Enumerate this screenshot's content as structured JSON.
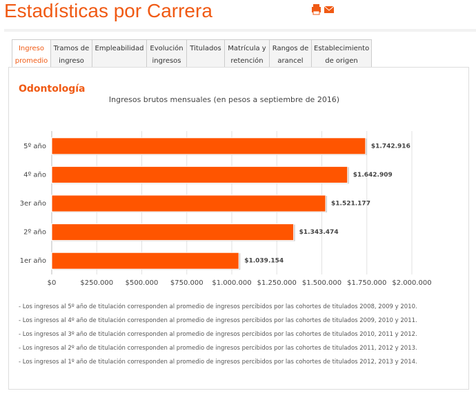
{
  "header": {
    "title": "Estadísticas por Carrera"
  },
  "tabs": [
    "Ingreso promedio",
    "Tramos de ingreso",
    "Empleabilidad",
    "Evolución ingresos",
    "Titulados",
    "Matrícula y retención",
    "Rangos de arancel",
    "Establecimiento de origen"
  ],
  "section_title": "Odontología",
  "chart_data": {
    "type": "hbar",
    "title": "Ingresos brutos mensuales (en pesos a septiembre de 2016)",
    "categories": [
      "5º año",
      "4º año",
      "3er año",
      "2º año",
      "1er año"
    ],
    "values": [
      1742916,
      1642909,
      1521177,
      1343474,
      1039154
    ],
    "value_labels": [
      "$1.742.916",
      "$1.642.909",
      "$1.521.177",
      "$1.343.474",
      "$1.039.154"
    ],
    "color": "#ff5500",
    "xlim": [
      0,
      2000000
    ],
    "xticks": [
      {
        "value": 0,
        "label": "$0"
      },
      {
        "value": 250000,
        "label": "$250.000"
      },
      {
        "value": 500000,
        "label": "$500.000"
      },
      {
        "value": 750000,
        "label": "$750.000"
      },
      {
        "value": 1000000,
        "label": "$1.000.000"
      },
      {
        "value": 1250000,
        "label": "$1.250.000"
      },
      {
        "value": 1500000,
        "label": "$1.500.000"
      },
      {
        "value": 1750000,
        "label": "$1.750.000"
      },
      {
        "value": 2000000,
        "label": "$2.000.000"
      }
    ],
    "grid": true
  },
  "notes": [
    "- Los ingresos al 5º año de titulación corresponden al promedio de ingresos percibidos por las cohortes de titulados 2008, 2009 y 2010.",
    "- Los ingresos al 4º año de titulación corresponden al promedio de ingresos percibidos por las cohortes de titulados 2009, 2010 y 2011.",
    "- Los ingresos al 3º año de titulación corresponden al promedio de ingresos percibidos por las cohortes de titulados 2010, 2011 y 2012.",
    "- Los ingresos al 2º año de titulación corresponden al promedio de ingresos percibidos por las cohortes de titulados 2011, 2012 y 2013.",
    "- Los ingresos al 1º año de titulación corresponden al promedio de ingresos percibidos por las cohortes de titulados 2012, 2013 y 2014."
  ]
}
